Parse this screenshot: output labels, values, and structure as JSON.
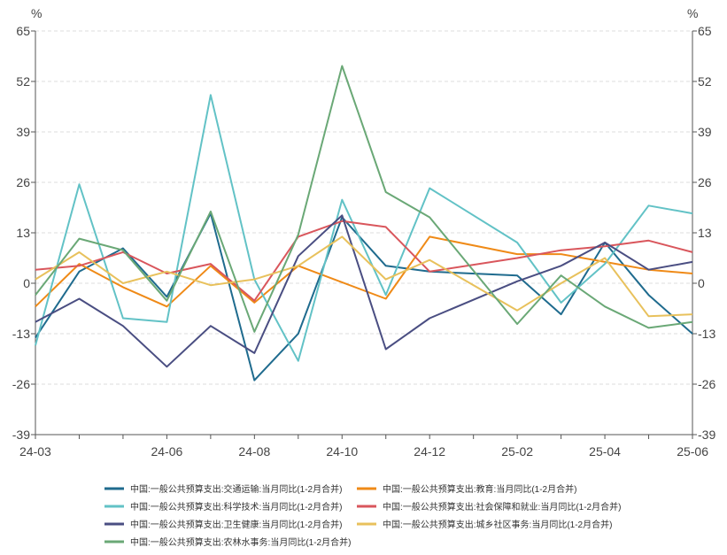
{
  "chart_data": {
    "type": "line",
    "left_unit": "%",
    "right_unit": "%",
    "ylim": [
      -39,
      65
    ],
    "y_ticks": [
      65,
      52,
      39,
      26,
      13,
      0,
      -13,
      -26,
      -39
    ],
    "x": [
      "24-03",
      "24-04",
      "24-05",
      "24-06",
      "24-07",
      "24-08",
      "24-09",
      "24-10",
      "24-11",
      "24-12",
      "25-01",
      "25-02",
      "25-03",
      "25-04",
      "25-05",
      "25-06"
    ],
    "x_tick_labels": [
      "24-03",
      "24-06",
      "24-08",
      "24-10",
      "24-12",
      "25-02",
      "25-04",
      "25-06"
    ],
    "grid": true,
    "legend_position": "bottom",
    "series": [
      {
        "name": "中国:一般公共预算支出:交通运输:当月同比(1-2月合并)",
        "color": "#1f6b8e",
        "values": [
          -14,
          3,
          9,
          -3.5,
          18,
          -25,
          -13,
          17,
          4.5,
          3,
          null,
          2,
          -8,
          10.5,
          -3,
          -13
        ]
      },
      {
        "name": "中国:一般公共预算支出:教育:当月同比(1-2月合并)",
        "color": "#ef8a17",
        "values": [
          -6,
          5,
          -1,
          -6,
          4.5,
          -5,
          4.5,
          null,
          -4,
          12,
          null,
          7.5,
          7.5,
          5.5,
          3.5,
          2.5
        ]
      },
      {
        "name": "中国:一般公共预算支出:科学技术:当月同比(1-2月合并)",
        "color": "#62c2c6",
        "values": [
          -16,
          25.5,
          -9,
          -10,
          48.5,
          1,
          -20,
          21.5,
          -3,
          24.5,
          null,
          10.5,
          -5,
          5,
          20,
          18
        ]
      },
      {
        "name": "中国:一般公共预算支出:社会保障和就业:当月同比(1-2月合并)",
        "color": "#d9565c",
        "values": [
          3.5,
          4.5,
          8,
          2.5,
          5,
          -4.5,
          12,
          16,
          14.5,
          3,
          null,
          6.5,
          8.5,
          9.5,
          11,
          8
        ]
      },
      {
        "name": "中国:一般公共预算支出:卫生健康:当月同比(1-2月合并)",
        "color": "#4a4e82",
        "values": [
          -10,
          -4,
          -11,
          -21.5,
          -11,
          -18,
          7,
          17.5,
          -17,
          -9,
          null,
          0.5,
          4.5,
          10.5,
          3.5,
          5.5
        ]
      },
      {
        "name": "中国:一般公共预算支出:城乡社区事务:当月同比(1-2月合并)",
        "color": "#e8c15c",
        "values": [
          1,
          8,
          0,
          3,
          -0.5,
          1,
          4.5,
          12,
          1,
          6,
          null,
          -7,
          0,
          6.5,
          -8.5,
          -8
        ]
      },
      {
        "name": "中国:一般公共预算支出:农林水事务:当月同比(1-2月合并)",
        "color": "#6aa876",
        "values": [
          -3,
          11.5,
          8.5,
          -4.5,
          18.5,
          -12.5,
          12.5,
          56,
          23.5,
          17,
          null,
          -10.5,
          2,
          -6,
          -11.5,
          -10
        ]
      }
    ]
  }
}
